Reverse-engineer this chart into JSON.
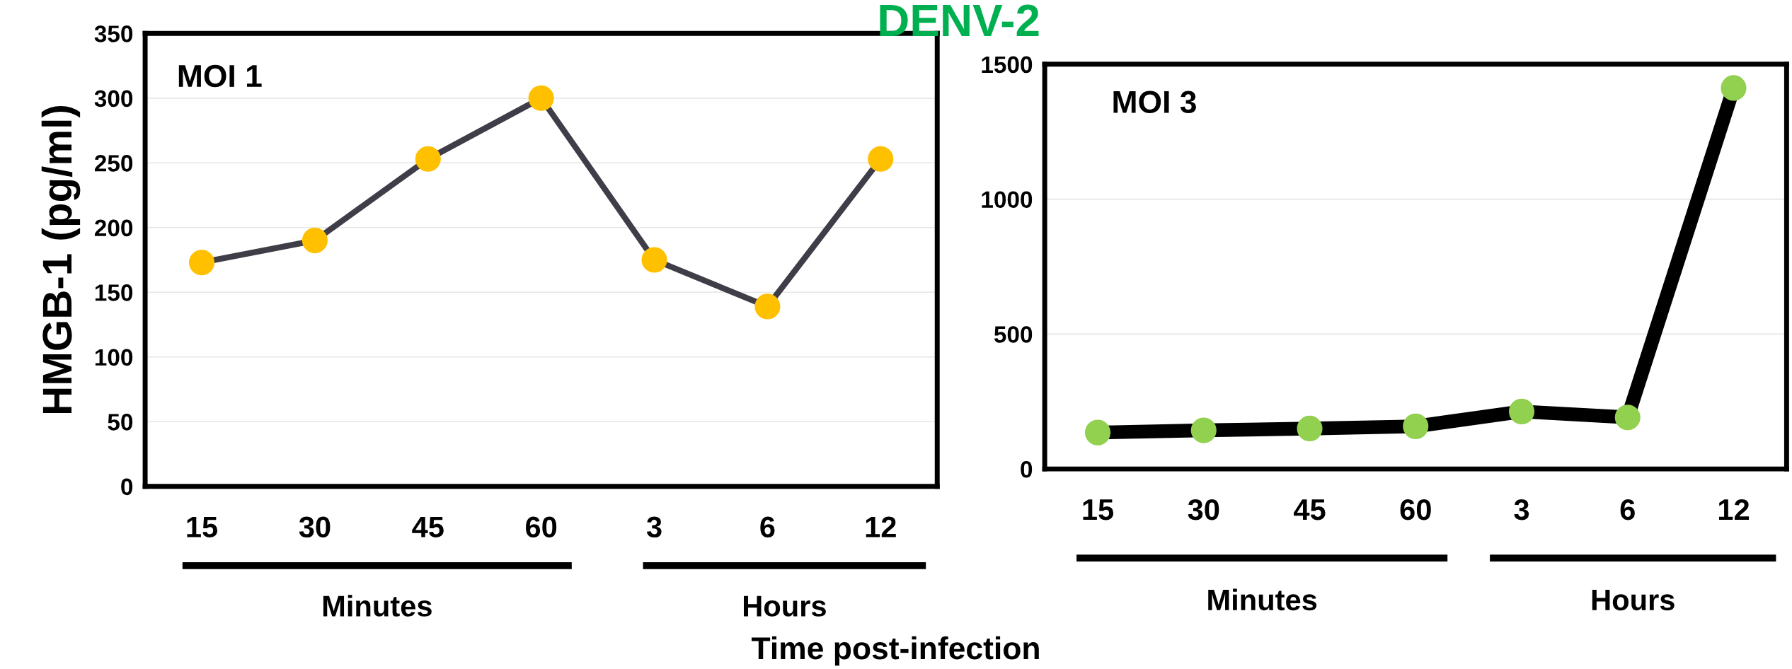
{
  "chart_data": [
    {
      "type": "line",
      "title": "DENV-2",
      "xlabel": "Time post-infection",
      "ylabel": "HMGB-1 (pg/ml)",
      "categories": [
        "15",
        "30",
        "45",
        "60",
        "3",
        "6",
        "12"
      ],
      "series": [
        {
          "color": "#3f3e48",
          "values": [
            173,
            190,
            253,
            300,
            175,
            139,
            253
          ],
          "colors": [
            "#ffc000",
            "#ffc000",
            "#ffc000",
            "#ffc000",
            "#ffc000",
            "#ffc000",
            "#ffc000"
          ]
        }
      ],
      "ylim": [
        0,
        350
      ],
      "yticks": [
        0,
        50,
        100,
        150,
        200,
        250,
        300,
        350
      ],
      "grid": "y",
      "marker": "circle",
      "line_style": "solid",
      "annotations": [
        "MOI 1",
        "Minutes",
        "Hours"
      ]
    },
    {
      "type": "line",
      "categories": [
        "15",
        "30",
        "45",
        "60",
        "3",
        "6",
        "12"
      ],
      "series": [
        {
          "color": "#000000",
          "values": [
            135,
            143,
            150,
            158,
            213,
            191,
            1412
          ],
          "colors": [
            "#92d050",
            "#92d050",
            "#92d050",
            "#92d050",
            "#92d050",
            "#92d050",
            "#92d050"
          ]
        }
      ],
      "ylim": [
        0,
        1500
      ],
      "yticks": [
        0,
        500,
        1000,
        1500
      ],
      "grid": "y",
      "marker": "circle",
      "line_style": "solid",
      "annotations": [
        "MOI 3",
        "Minutes",
        "Hours"
      ]
    }
  ]
}
